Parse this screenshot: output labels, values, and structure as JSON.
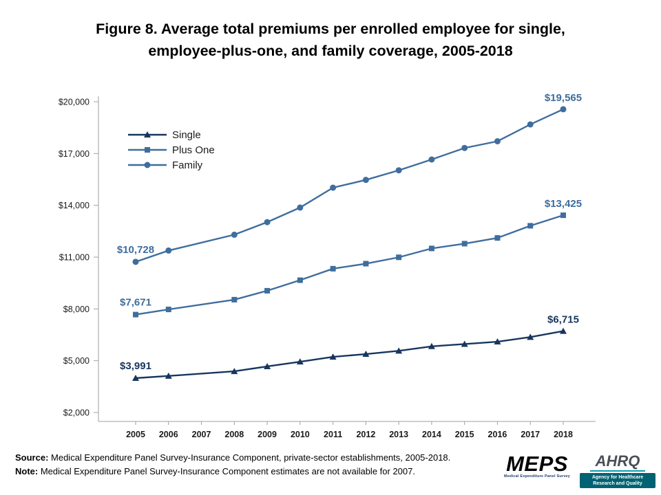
{
  "title": "Figure 8. Average total premiums per enrolled employee for single, employee-plus-one, and family coverage, 2005-2018",
  "chart_data": {
    "type": "line",
    "title": "Figure 8. Average total premiums per enrolled employee for single, employee-plus-one, and family coverage, 2005-2018",
    "x": [
      "2005",
      "2006",
      "2007",
      "2008",
      "2009",
      "2010",
      "2011",
      "2012",
      "2013",
      "2014",
      "2015",
      "2016",
      "2017",
      "2018"
    ],
    "ylim": [
      2000,
      20000
    ],
    "yticks": [
      2000,
      5000,
      8000,
      11000,
      14000,
      17000,
      20000
    ],
    "ytick_labels": [
      "$2,000",
      "$5,000",
      "$8,000",
      "$11,000",
      "$14,000",
      "$17,000",
      "$20,000"
    ],
    "grid": false,
    "legend_position": "top-left-inside",
    "note": "2007 values not available; lines connect 2006 directly to 2008",
    "series": [
      {
        "name": "Single",
        "marker": "triangle",
        "color": "#17365d",
        "values": [
          3991,
          4118,
          null,
          4386,
          4669,
          4940,
          5222,
          5384,
          5571,
          5832,
          5963,
          6101,
          6368,
          6715
        ],
        "first_label": "$3,991",
        "last_label": "$6,715"
      },
      {
        "name": "Plus One",
        "marker": "square",
        "color": "#3f6d9e",
        "values": [
          7671,
          7970,
          null,
          8535,
          9053,
          9664,
          10329,
          10621,
          10990,
          11503,
          11780,
          12111,
          12817,
          13425
        ],
        "first_label": "$7,671",
        "last_label": "$13,425"
      },
      {
        "name": "Family",
        "marker": "circle",
        "color": "#3f6d9e",
        "values": [
          10728,
          11381,
          null,
          12298,
          13027,
          13871,
          15022,
          15473,
          16029,
          16655,
          17322,
          17710,
          18687,
          19565
        ],
        "first_label": "$10,728",
        "last_label": "$19,565"
      }
    ]
  },
  "footer": {
    "source_label": "Source:",
    "source_text": " Medical Expenditure Panel Survey-Insurance Component,  private-sector establishments, 2005-2018.",
    "note_label": "Note:",
    "note_text": " Medical Expenditure Panel Survey-Insurance Component  estimates are not available for 2007."
  },
  "logos": {
    "meps_text": "MEPS",
    "meps_sub": "Medical Expenditure Panel Survey",
    "ahrq_text": "AHRQ",
    "ahrq_sub": "Agency for Healthcare Research and Quality"
  }
}
